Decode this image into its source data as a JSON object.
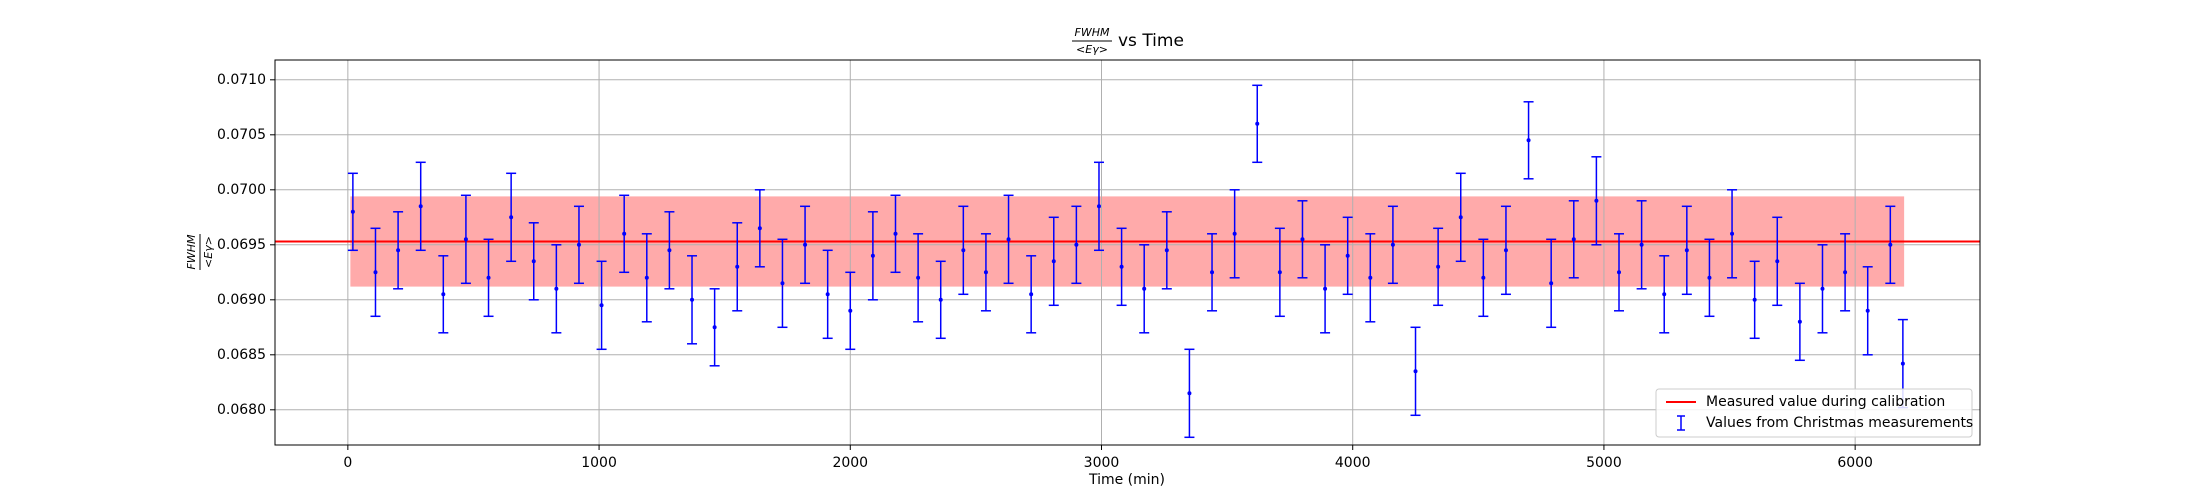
{
  "chart_data": {
    "type": "errorbar",
    "title_numerator": "FWHM",
    "title_denominator": "<Eγ>",
    "title_suffix": "vs Time",
    "ylabel_numerator": "FWHM",
    "ylabel_denominator": "<Eγ>",
    "xlabel": "Time (min)",
    "xlim": [
      -290,
      6497
    ],
    "ylim": [
      0.06768,
      0.07118
    ],
    "xticks": [
      0,
      1000,
      2000,
      3000,
      4000,
      5000,
      6000
    ],
    "yticks": [
      {
        "value": 0.068,
        "label": "0.0680"
      },
      0.0685,
      {
        "value": 0.069,
        "label": "0.0690"
      },
      0.0695,
      {
        "value": 0.07,
        "label": "0.0700"
      },
      0.0705,
      {
        "value": 0.071,
        "label": "0.0710"
      }
    ],
    "grid": true,
    "legend": "lower right",
    "calibration": {
      "name": "Measured value during calibration",
      "color": "#ff0000",
      "band_color": "#ffaaaa",
      "value": 0.06953,
      "error": 0.00041,
      "band_xlim": [
        10,
        6195
      ]
    },
    "series": [
      {
        "name": "Values from Christmas measurements",
        "color": "#0000ff",
        "x": [
          20,
          110,
          200,
          290,
          380,
          470,
          560,
          650,
          740,
          830,
          920,
          1010,
          1100,
          1190,
          1280,
          1370,
          1460,
          1550,
          1640,
          1730,
          1820,
          1910,
          2000,
          2090,
          2180,
          2270,
          2360,
          2450,
          2540,
          2630,
          2720,
          2810,
          2900,
          2990,
          3080,
          3170,
          3260,
          3350,
          3440,
          3530,
          3620,
          3710,
          3800,
          3890,
          3980,
          4070,
          4160,
          4250,
          4340,
          4430,
          4520,
          4610,
          4700,
          4790,
          4880,
          4970,
          5060,
          5150,
          5240,
          5330,
          5420,
          5510,
          5600,
          5690,
          5780,
          5870,
          5960,
          6050,
          6140,
          6190
        ],
        "values": [
          0.0698,
          0.06925,
          0.06945,
          0.06985,
          0.06905,
          0.06955,
          0.0692,
          0.06975,
          0.06935,
          0.0691,
          0.0695,
          0.06895,
          0.0696,
          0.0692,
          0.06945,
          0.069,
          0.06875,
          0.0693,
          0.06965,
          0.06915,
          0.0695,
          0.06905,
          0.0689,
          0.0694,
          0.0696,
          0.0692,
          0.069,
          0.06945,
          0.06925,
          0.06955,
          0.06905,
          0.06935,
          0.0695,
          0.06985,
          0.0693,
          0.0691,
          0.06945,
          0.06815,
          0.06925,
          0.0696,
          0.0706,
          0.06925,
          0.06955,
          0.0691,
          0.0694,
          0.0692,
          0.0695,
          0.06835,
          0.0693,
          0.06975,
          0.0692,
          0.06945,
          0.07045,
          0.06915,
          0.06955,
          0.0699,
          0.06925,
          0.0695,
          0.06905,
          0.06945,
          0.0692,
          0.0696,
          0.069,
          0.06935,
          0.0688,
          0.0691,
          0.06925,
          0.0689,
          0.0695,
          0.06842
        ],
        "errors": [
          0.00035,
          0.0004,
          0.00035,
          0.0004,
          0.00035,
          0.0004,
          0.00035,
          0.0004,
          0.00035,
          0.0004,
          0.00035,
          0.0004,
          0.00035,
          0.0004,
          0.00035,
          0.0004,
          0.00035,
          0.0004,
          0.00035,
          0.0004,
          0.00035,
          0.0004,
          0.00035,
          0.0004,
          0.00035,
          0.0004,
          0.00035,
          0.0004,
          0.00035,
          0.0004,
          0.00035,
          0.0004,
          0.00035,
          0.0004,
          0.00035,
          0.0004,
          0.00035,
          0.0004,
          0.00035,
          0.0004,
          0.00035,
          0.0004,
          0.00035,
          0.0004,
          0.00035,
          0.0004,
          0.00035,
          0.0004,
          0.00035,
          0.0004,
          0.00035,
          0.0004,
          0.00035,
          0.0004,
          0.00035,
          0.0004,
          0.00035,
          0.0004,
          0.00035,
          0.0004,
          0.00035,
          0.0004,
          0.00035,
          0.0004,
          0.00035,
          0.0004,
          0.00035,
          0.0004,
          0.00035,
          0.0004
        ]
      }
    ]
  }
}
